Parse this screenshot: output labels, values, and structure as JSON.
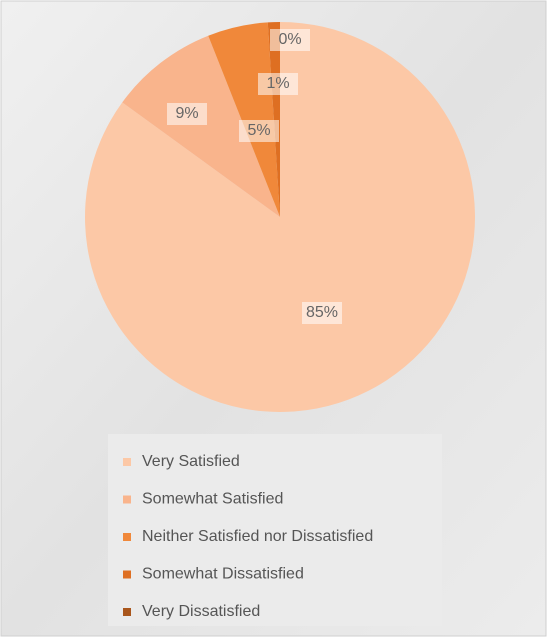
{
  "chart_data": {
    "type": "pie",
    "categories": [
      "Very Satisfied",
      "Somewhat Satisfied",
      "Neither Satisfied nor Dissatisfied",
      "Somewhat Dissatisfied",
      "Very Dissatisfied"
    ],
    "values": [
      85,
      9,
      5,
      1,
      0
    ],
    "value_labels": [
      "85%",
      "9%",
      "5%",
      "1%",
      "0%"
    ],
    "colors": [
      "#fcc8a6",
      "#f9b48c",
      "#f0883a",
      "#de6f22",
      "#a9561c"
    ],
    "legend": "bottom"
  }
}
